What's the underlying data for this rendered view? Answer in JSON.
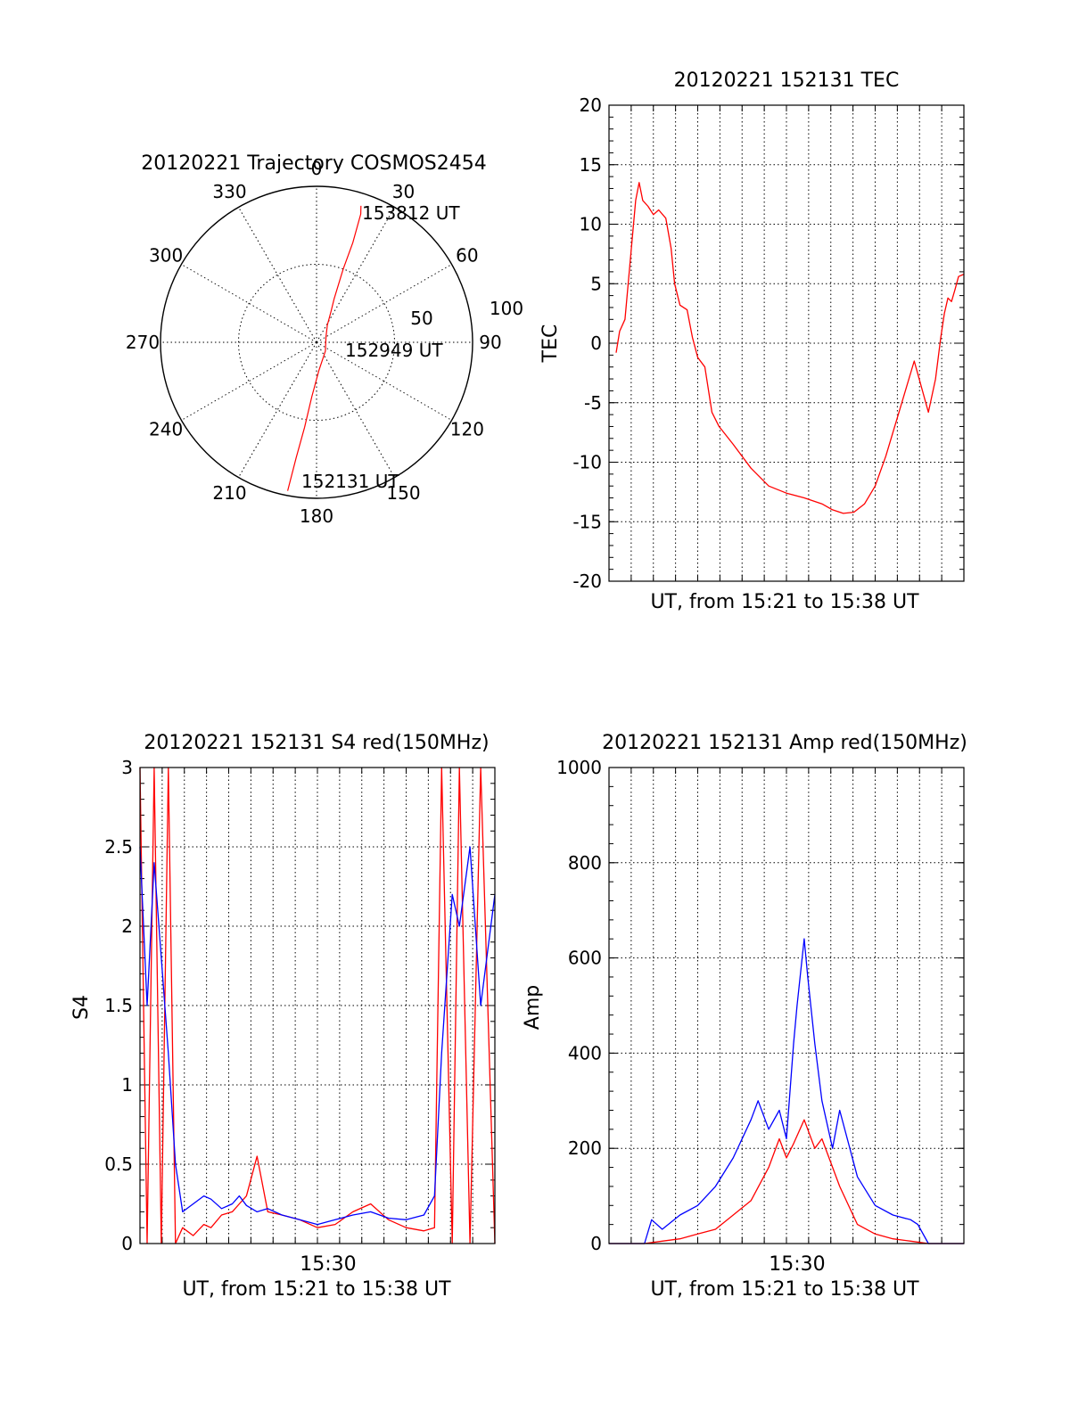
{
  "colors": {
    "red": "#ff0000",
    "blue": "#0000ff",
    "axis": "#000000"
  },
  "chart_data": [
    {
      "type": "polar",
      "title": "20120221 Trajectory COSMOS2454",
      "azimuth_labels": [
        "0",
        "30",
        "60",
        "90",
        "120",
        "150",
        "180",
        "210",
        "240",
        "270",
        "300",
        "330"
      ],
      "elevation_labels": [
        "50",
        "100"
      ],
      "labels": {
        "start": "152131 UT",
        "mid": "152949 UT",
        "end": "153812 UT"
      },
      "trajectory": [
        {
          "az": 191,
          "r": 97
        },
        {
          "az": 190,
          "r": 75
        },
        {
          "az": 188,
          "r": 55
        },
        {
          "az": 185,
          "r": 35
        },
        {
          "az": 175,
          "r": 18
        },
        {
          "az": 135,
          "r": 8
        },
        {
          "az": 60,
          "r": 7
        },
        {
          "az": 32,
          "r": 13
        },
        {
          "az": 25,
          "r": 22
        },
        {
          "az": 22,
          "r": 30
        },
        {
          "az": 20,
          "r": 50
        },
        {
          "az": 20,
          "r": 68
        },
        {
          "az": 19,
          "r": 87
        },
        {
          "az": 18,
          "r": 92
        }
      ]
    },
    {
      "type": "line",
      "title": "20120221 152131 TEC",
      "xlabel": "UT, from 15:21 to 15:38 UT",
      "ylabel": "TEC",
      "ylim": [
        -20,
        20
      ],
      "xlim": [
        0,
        1
      ],
      "yticks": [
        "20",
        "15",
        "10",
        "5",
        "0",
        "-5",
        "-10",
        "-15",
        "-20"
      ],
      "series": [
        {
          "color": "#ff0000",
          "x": [
            0.02,
            0.03,
            0.045,
            0.06,
            0.075,
            0.085,
            0.095,
            0.11,
            0.125,
            0.14,
            0.16,
            0.175,
            0.185,
            0.2,
            0.22,
            0.235,
            0.25,
            0.27,
            0.29,
            0.31,
            0.35,
            0.4,
            0.45,
            0.5,
            0.55,
            0.6,
            0.63,
            0.66,
            0.69,
            0.72,
            0.75,
            0.78,
            0.82,
            0.86,
            0.9,
            0.92,
            0.935,
            0.945,
            0.955,
            0.965,
            0.975,
            0.985,
            1.0
          ],
          "y": [
            -0.8,
            1.0,
            2.0,
            7.0,
            12.0,
            13.5,
            12.0,
            11.5,
            10.8,
            11.2,
            10.5,
            8.0,
            5.0,
            3.2,
            2.8,
            0.5,
            -1.2,
            -2.0,
            -5.8,
            -7.0,
            -8.5,
            -10.5,
            -12.0,
            -12.6,
            -13.0,
            -13.5,
            -14.0,
            -14.3,
            -14.2,
            -13.5,
            -12.0,
            -9.5,
            -5.5,
            -1.5,
            -5.8,
            -3.0,
            0.5,
            2.5,
            3.8,
            3.5,
            4.5,
            5.6,
            5.8
          ]
        }
      ]
    },
    {
      "type": "line",
      "title": "20120221 152131 S4 red(150MHz)",
      "xlabel": "UT, from 15:21 to 15:38 UT",
      "ylabel": "S4",
      "ylim": [
        0,
        3
      ],
      "xlim": [
        0,
        1
      ],
      "yticks": [
        "3",
        "2.5",
        "2",
        "1.5",
        "1",
        "0.5",
        "0"
      ],
      "xticks": [
        {
          "x": 0.53,
          "label": "15:30"
        }
      ],
      "series": [
        {
          "color": "#ff0000",
          "x": [
            0.0,
            0.02,
            0.04,
            0.06,
            0.08,
            0.1,
            0.12,
            0.15,
            0.18,
            0.2,
            0.23,
            0.26,
            0.28,
            0.3,
            0.33,
            0.36,
            0.4,
            0.45,
            0.5,
            0.55,
            0.6,
            0.65,
            0.7,
            0.75,
            0.8,
            0.83,
            0.85,
            0.88,
            0.9,
            0.93,
            0.96,
            1.0
          ],
          "y": [
            3.0,
            0.0,
            3.0,
            0.0,
            3.0,
            0.0,
            0.1,
            0.05,
            0.12,
            0.1,
            0.18,
            0.2,
            0.25,
            0.3,
            0.55,
            0.2,
            0.18,
            0.15,
            0.1,
            0.12,
            0.2,
            0.25,
            0.15,
            0.1,
            0.08,
            0.1,
            3.0,
            0.0,
            3.0,
            0.0,
            3.0,
            0.0
          ]
        },
        {
          "color": "#0000ff",
          "x": [
            0.0,
            0.02,
            0.04,
            0.06,
            0.08,
            0.1,
            0.12,
            0.15,
            0.18,
            0.2,
            0.23,
            0.26,
            0.28,
            0.3,
            0.33,
            0.36,
            0.4,
            0.45,
            0.5,
            0.55,
            0.6,
            0.65,
            0.7,
            0.75,
            0.8,
            0.83,
            0.85,
            0.88,
            0.9,
            0.93,
            0.96,
            1.0
          ],
          "y": [
            2.5,
            1.5,
            2.4,
            1.8,
            1.2,
            0.5,
            0.2,
            0.25,
            0.3,
            0.28,
            0.22,
            0.25,
            0.3,
            0.24,
            0.2,
            0.22,
            0.18,
            0.15,
            0.12,
            0.15,
            0.18,
            0.2,
            0.16,
            0.15,
            0.18,
            0.3,
            1.2,
            2.2,
            2.0,
            2.5,
            1.5,
            2.2
          ]
        }
      ]
    },
    {
      "type": "line",
      "title": "20120221 152131 Amp red(150MHz)",
      "xlabel": "UT, from 15:21 to 15:38 UT",
      "ylabel": "Amp",
      "ylim": [
        0,
        1000
      ],
      "xlim": [
        0,
        1
      ],
      "yticks": [
        "1000",
        "800",
        "600",
        "400",
        "200",
        "0"
      ],
      "xticks": [
        {
          "x": 0.53,
          "label": "15:30"
        }
      ],
      "series": [
        {
          "color": "#ff0000",
          "x": [
            0.0,
            0.05,
            0.1,
            0.15,
            0.2,
            0.25,
            0.3,
            0.35,
            0.4,
            0.45,
            0.48,
            0.5,
            0.52,
            0.55,
            0.58,
            0.6,
            0.65,
            0.7,
            0.75,
            0.8,
            0.85,
            0.9,
            1.0
          ],
          "y": [
            0,
            0,
            0,
            5,
            10,
            20,
            30,
            60,
            90,
            160,
            220,
            180,
            210,
            260,
            200,
            220,
            120,
            40,
            20,
            10,
            5,
            0,
            0
          ]
        },
        {
          "color": "#0000ff",
          "x": [
            0.0,
            0.05,
            0.1,
            0.12,
            0.15,
            0.2,
            0.25,
            0.3,
            0.35,
            0.4,
            0.42,
            0.45,
            0.48,
            0.5,
            0.52,
            0.53,
            0.55,
            0.56,
            0.58,
            0.6,
            0.63,
            0.65,
            0.7,
            0.75,
            0.8,
            0.85,
            0.87,
            0.9,
            1.0
          ],
          "y": [
            0,
            0,
            0,
            50,
            30,
            60,
            80,
            120,
            180,
            260,
            300,
            240,
            280,
            220,
            420,
            500,
            640,
            560,
            420,
            300,
            200,
            280,
            140,
            80,
            60,
            50,
            40,
            0,
            0
          ]
        }
      ]
    }
  ]
}
